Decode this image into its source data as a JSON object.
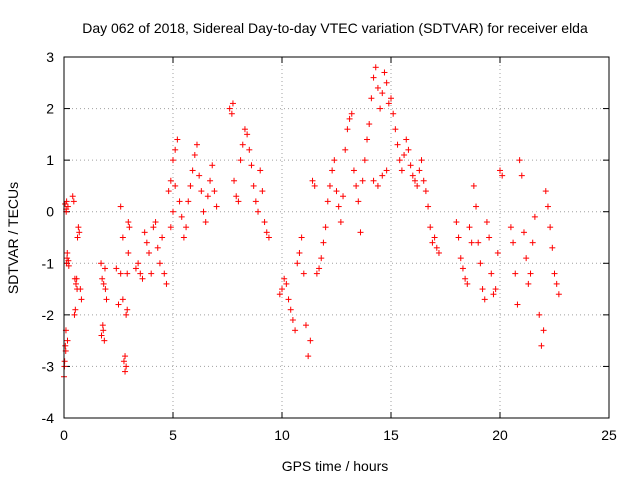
{
  "chart_data": {
    "type": "scatter",
    "title": "Day 062 of 2018, Sidereal Day-to-day VTEC variation (SDTVAR) for receiver elda",
    "xlabel": "GPS time / hours",
    "ylabel": "SDTVAR / TECUs",
    "xlim": [
      0,
      25
    ],
    "ylim": [
      -4,
      3
    ],
    "xticks": [
      0,
      5,
      10,
      15,
      20,
      25
    ],
    "yticks": [
      -4,
      -3,
      -2,
      -1,
      0,
      1,
      2,
      3
    ],
    "xtick_labels": [
      "0",
      "5",
      "10",
      "15",
      "20",
      "25"
    ],
    "ytick_labels": [
      "-4",
      "-3",
      "-2",
      "-1",
      "0",
      "1",
      "2",
      "3"
    ],
    "grid": true,
    "marker": "+",
    "series": [
      {
        "name": "SDTVAR",
        "color": "#ff0000",
        "x": [
          0.0,
          0.03,
          0.06,
          0.09,
          0.12,
          0.15,
          0.18,
          0.05,
          0.1,
          0.14,
          0.02,
          0.08,
          0.16,
          0.2,
          0.1,
          0.12,
          0.22,
          0.4,
          0.45,
          0.5,
          0.55,
          0.6,
          0.48,
          0.52,
          0.58,
          0.62,
          0.66,
          0.7,
          0.75,
          0.8,
          1.7,
          1.75,
          1.8,
          1.85,
          1.9,
          1.95,
          1.72,
          1.78,
          1.82,
          1.88,
          2.4,
          2.5,
          2.6,
          2.7,
          2.75,
          2.8,
          2.85,
          2.9,
          2.95,
          2.6,
          2.7,
          2.8,
          2.85,
          2.9,
          2.95,
          3.0,
          3.3,
          3.4,
          3.5,
          3.6,
          3.7,
          3.8,
          3.9,
          4.0,
          4.1,
          4.2,
          4.3,
          4.4,
          4.5,
          4.6,
          4.7,
          4.8,
          4.9,
          5.0,
          5.1,
          5.2,
          5.3,
          5.4,
          4.9,
          5.0,
          5.1,
          5.5,
          5.6,
          5.7,
          5.8,
          5.9,
          6.0,
          6.1,
          6.2,
          6.3,
          6.4,
          6.5,
          6.6,
          6.7,
          6.8,
          6.9,
          7.0,
          7.6,
          7.7,
          7.75,
          7.8,
          7.9,
          8.0,
          8.1,
          8.2,
          8.3,
          8.4,
          8.5,
          8.6,
          8.7,
          8.8,
          8.9,
          9.0,
          9.1,
          9.2,
          9.3,
          9.4,
          9.9,
          10.0,
          10.1,
          10.2,
          10.3,
          10.4,
          10.5,
          10.6,
          10.7,
          10.8,
          10.9,
          11.0,
          11.1,
          11.2,
          11.3,
          11.4,
          11.5,
          11.6,
          11.7,
          11.8,
          11.9,
          12.0,
          12.1,
          12.2,
          12.3,
          12.4,
          12.5,
          12.6,
          12.7,
          12.8,
          12.9,
          13.0,
          13.1,
          13.2,
          13.3,
          13.4,
          13.5,
          13.6,
          13.7,
          13.8,
          13.9,
          14.0,
          14.1,
          14.2,
          14.3,
          14.4,
          14.5,
          14.6,
          14.7,
          14.8,
          14.9,
          15.0,
          14.2,
          14.4,
          14.6,
          14.8,
          15.1,
          15.2,
          15.3,
          15.4,
          15.5,
          15.6,
          15.7,
          15.8,
          15.9,
          16.0,
          16.1,
          16.2,
          16.3,
          16.4,
          16.5,
          16.6,
          16.7,
          16.8,
          16.9,
          17.0,
          17.1,
          17.2,
          18.0,
          18.1,
          18.2,
          18.3,
          18.4,
          18.5,
          18.6,
          18.7,
          18.8,
          18.9,
          19.0,
          19.1,
          19.2,
          19.3,
          19.4,
          19.5,
          19.6,
          19.7,
          19.8,
          19.9,
          20.0,
          20.1,
          20.5,
          20.6,
          20.7,
          20.8,
          20.9,
          21.0,
          21.1,
          21.2,
          21.3,
          21.4,
          21.5,
          21.6,
          21.8,
          21.9,
          22.0,
          22.1,
          22.2,
          22.3,
          22.4,
          22.5,
          22.6,
          22.7
        ],
        "y": [
          -3.2,
          -2.9,
          -2.6,
          -2.3,
          -1.0,
          -0.8,
          0.1,
          0.15,
          0.0,
          -0.9,
          -3.0,
          -2.7,
          -2.5,
          -0.95,
          0.05,
          0.2,
          -1.05,
          0.3,
          0.2,
          -1.3,
          -1.4,
          -1.5,
          -2.0,
          -1.9,
          -1.3,
          -0.5,
          -0.3,
          -0.4,
          -1.5,
          -1.7,
          -1.0,
          -1.3,
          -2.3,
          -2.5,
          -1.5,
          -1.7,
          -2.4,
          -2.2,
          -1.4,
          -1.1,
          -1.1,
          -1.8,
          -1.2,
          -0.5,
          -2.9,
          -3.1,
          -2.0,
          -1.2,
          -0.2,
          0.1,
          -1.7,
          -2.8,
          -3.0,
          -1.9,
          -0.8,
          -0.3,
          -1.1,
          -1.0,
          -1.2,
          -1.3,
          -0.4,
          -0.6,
          -0.8,
          -1.2,
          -0.3,
          -0.2,
          -0.7,
          -1.0,
          -0.5,
          -1.2,
          -1.4,
          0.4,
          0.6,
          1.0,
          1.2,
          1.4,
          0.2,
          -0.1,
          -0.3,
          0.0,
          0.5,
          -0.5,
          -0.3,
          0.2,
          0.5,
          0.8,
          1.1,
          1.3,
          0.7,
          0.4,
          0.0,
          -0.2,
          0.3,
          0.6,
          0.9,
          0.4,
          0.1,
          2.0,
          1.9,
          2.1,
          0.6,
          0.3,
          0.2,
          1.0,
          1.3,
          1.6,
          1.5,
          1.2,
          0.9,
          0.5,
          0.2,
          0.0,
          0.8,
          0.4,
          -0.2,
          -0.4,
          -0.5,
          -1.6,
          -1.5,
          -1.3,
          -1.4,
          -1.7,
          -1.9,
          -2.1,
          -2.3,
          -1.0,
          -0.8,
          -0.5,
          -1.2,
          -2.2,
          -2.8,
          -2.5,
          0.6,
          0.5,
          -1.2,
          -1.1,
          -0.9,
          -0.6,
          -0.3,
          0.2,
          0.5,
          0.8,
          1.0,
          0.4,
          0.1,
          -0.2,
          0.3,
          1.2,
          1.6,
          1.8,
          1.9,
          0.8,
          0.5,
          0.2,
          -0.4,
          0.6,
          1.0,
          1.4,
          1.7,
          2.2,
          2.6,
          2.8,
          2.4,
          2.0,
          2.3,
          2.7,
          2.5,
          2.1,
          2.2,
          0.6,
          0.5,
          0.7,
          0.8,
          1.9,
          1.6,
          1.3,
          1.0,
          0.8,
          1.1,
          1.4,
          1.2,
          0.9,
          0.7,
          0.6,
          0.5,
          0.8,
          1.0,
          0.6,
          0.4,
          0.1,
          -0.3,
          -0.6,
          -0.5,
          -0.7,
          -0.8,
          -0.2,
          -0.5,
          -0.9,
          -1.1,
          -1.3,
          -1.4,
          -0.3,
          -0.6,
          0.5,
          0.1,
          -0.6,
          -1.0,
          -1.5,
          -1.7,
          -0.2,
          -0.5,
          -1.2,
          -1.6,
          -1.5,
          -0.8,
          0.8,
          0.7,
          -0.3,
          -0.6,
          -1.2,
          -1.8,
          1.0,
          0.7,
          -0.4,
          -0.9,
          -1.4,
          -1.2,
          -0.6,
          -0.1,
          -2.0,
          -2.6,
          -2.3,
          0.4,
          0.1,
          -0.3,
          -0.7,
          -1.2,
          -1.4,
          -1.6
        ]
      }
    ]
  }
}
